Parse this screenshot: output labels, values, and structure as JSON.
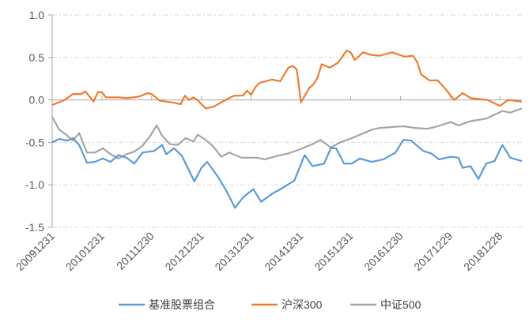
{
  "chart_data": {
    "type": "line",
    "title": "",
    "xlabel": "",
    "ylabel": "",
    "ylim": [
      -1.5,
      1.0
    ],
    "yticks": [
      "1.0",
      "0.5",
      "0.0",
      "-0.5",
      "-1.0",
      "-1.5"
    ],
    "ytick_values": [
      1.0,
      0.5,
      0.0,
      -0.5,
      -1.0,
      -1.5
    ],
    "x_unit": "months since 20091231",
    "xlim": [
      0,
      113.3
    ],
    "xticks": [
      {
        "month": 0,
        "label": "20091231"
      },
      {
        "month": 12,
        "label": "20101231"
      },
      {
        "month": 24,
        "label": "20111230"
      },
      {
        "month": 36,
        "label": "20121231"
      },
      {
        "month": 48,
        "label": "20131231"
      },
      {
        "month": 60,
        "label": "20141231"
      },
      {
        "month": 72,
        "label": "20151231"
      },
      {
        "month": 84,
        "label": "20161230"
      },
      {
        "month": 96,
        "label": "20171229"
      },
      {
        "month": 108,
        "label": "20181228"
      }
    ],
    "grid": "horizontal dashed",
    "legend": "bottom",
    "series": [
      {
        "name": "基准股票组合",
        "color": "#5B9BD5",
        "points": [
          [
            0,
            -0.5
          ],
          [
            1.7,
            -0.46
          ],
          [
            3.6,
            -0.48
          ],
          [
            5,
            -0.45
          ],
          [
            6.5,
            -0.53
          ],
          [
            8.4,
            -0.74
          ],
          [
            10.3,
            -0.73
          ],
          [
            12.2,
            -0.69
          ],
          [
            14.1,
            -0.73
          ],
          [
            16,
            -0.65
          ],
          [
            17.9,
            -0.68
          ],
          [
            19.8,
            -0.75
          ],
          [
            21.8,
            -0.62
          ],
          [
            24.6,
            -0.6
          ],
          [
            26.5,
            -0.53
          ],
          [
            27.5,
            -0.64
          ],
          [
            29.4,
            -0.57
          ],
          [
            31.3,
            -0.66
          ],
          [
            33.2,
            -0.85
          ],
          [
            34.3,
            -0.96
          ],
          [
            36,
            -0.8
          ],
          [
            37.4,
            -0.73
          ],
          [
            39.9,
            -0.9
          ],
          [
            41.8,
            -1.05
          ],
          [
            44.1,
            -1.27
          ],
          [
            46,
            -1.15
          ],
          [
            48.5,
            -1.05
          ],
          [
            50.4,
            -1.2
          ],
          [
            53.2,
            -1.1
          ],
          [
            55.1,
            -1.05
          ],
          [
            58.4,
            -0.95
          ],
          [
            60.9,
            -0.65
          ],
          [
            62.8,
            -0.78
          ],
          [
            65.6,
            -0.75
          ],
          [
            67.2,
            -0.57
          ],
          [
            68.5,
            -0.57
          ],
          [
            70.4,
            -0.75
          ],
          [
            72.3,
            -0.75
          ],
          [
            74.2,
            -0.69
          ],
          [
            77.1,
            -0.73
          ],
          [
            79.9,
            -0.7
          ],
          [
            82.8,
            -0.62
          ],
          [
            84.7,
            -0.47
          ],
          [
            86.6,
            -0.48
          ],
          [
            89.5,
            -0.6
          ],
          [
            91.4,
            -0.63
          ],
          [
            93.3,
            -0.7
          ],
          [
            96.2,
            -0.67
          ],
          [
            98,
            -0.68
          ],
          [
            99,
            -0.8
          ],
          [
            100.9,
            -0.78
          ],
          [
            102.8,
            -0.93
          ],
          [
            104.7,
            -0.75
          ],
          [
            106.7,
            -0.72
          ],
          [
            108.6,
            -0.53
          ],
          [
            110.5,
            -0.68
          ],
          [
            113.3,
            -0.72
          ]
        ]
      },
      {
        "name": "沪深300",
        "color": "#ED7D31",
        "points": [
          [
            0,
            -0.06
          ],
          [
            3,
            0.0
          ],
          [
            5,
            0.07
          ],
          [
            7,
            0.07
          ],
          [
            8,
            0.1
          ],
          [
            10,
            -0.02
          ],
          [
            11,
            0.09
          ],
          [
            12,
            0.09
          ],
          [
            13,
            0.03
          ],
          [
            16,
            0.03
          ],
          [
            18,
            0.02
          ],
          [
            21,
            0.04
          ],
          [
            23,
            0.08
          ],
          [
            24,
            0.07
          ],
          [
            26,
            -0.01
          ],
          [
            29,
            -0.03
          ],
          [
            31,
            -0.05
          ],
          [
            32,
            0.05
          ],
          [
            33,
            0.0
          ],
          [
            34,
            0.03
          ],
          [
            35,
            0.0
          ],
          [
            37,
            -0.1
          ],
          [
            39,
            -0.08
          ],
          [
            40,
            -0.05
          ],
          [
            43,
            0.03
          ],
          [
            44,
            0.05
          ],
          [
            46,
            0.05
          ],
          [
            47,
            0.11
          ],
          [
            48,
            0.06
          ],
          [
            49,
            0.15
          ],
          [
            50,
            0.2
          ],
          [
            53,
            0.24
          ],
          [
            55,
            0.22
          ],
          [
            57,
            0.38
          ],
          [
            58,
            0.4
          ],
          [
            59,
            0.36
          ],
          [
            60,
            -0.03
          ],
          [
            62,
            0.14
          ],
          [
            63,
            0.18
          ],
          [
            64,
            0.26
          ],
          [
            65,
            0.42
          ],
          [
            67,
            0.38
          ],
          [
            69,
            0.44
          ],
          [
            71,
            0.58
          ],
          [
            72,
            0.56
          ],
          [
            73,
            0.47
          ],
          [
            75,
            0.56
          ],
          [
            77,
            0.53
          ],
          [
            79,
            0.52
          ],
          [
            82,
            0.56
          ],
          [
            85,
            0.51
          ],
          [
            87,
            0.52
          ],
          [
            88,
            0.45
          ],
          [
            89,
            0.3
          ],
          [
            91,
            0.23
          ],
          [
            93,
            0.23
          ],
          [
            95,
            0.12
          ],
          [
            97,
            0.0
          ],
          [
            99,
            0.08
          ],
          [
            101,
            0.02
          ],
          [
            105,
            0.0
          ],
          [
            108,
            -0.07
          ],
          [
            110,
            0.0
          ],
          [
            113.3,
            -0.02
          ]
        ]
      },
      {
        "name": "中证500",
        "color": "#A5A5A5",
        "points": [
          [
            0,
            -0.2
          ],
          [
            1.7,
            -0.35
          ],
          [
            3.6,
            -0.42
          ],
          [
            5,
            -0.48
          ],
          [
            6.5,
            -0.39
          ],
          [
            8.4,
            -0.62
          ],
          [
            10.3,
            -0.62
          ],
          [
            12.2,
            -0.57
          ],
          [
            14.1,
            -0.64
          ],
          [
            16,
            -0.69
          ],
          [
            17.9,
            -0.64
          ],
          [
            19.8,
            -0.61
          ],
          [
            21.8,
            -0.54
          ],
          [
            23.7,
            -0.42
          ],
          [
            25.2,
            -0.3
          ],
          [
            26.5,
            -0.42
          ],
          [
            28.4,
            -0.52
          ],
          [
            30.3,
            -0.53
          ],
          [
            32.2,
            -0.45
          ],
          [
            34.1,
            -0.49
          ],
          [
            35.1,
            -0.41
          ],
          [
            37,
            -0.47
          ],
          [
            38.9,
            -0.55
          ],
          [
            40.8,
            -0.67
          ],
          [
            42.7,
            -0.62
          ],
          [
            45.6,
            -0.68
          ],
          [
            49.4,
            -0.68
          ],
          [
            51.3,
            -0.7
          ],
          [
            54.2,
            -0.66
          ],
          [
            57,
            -0.63
          ],
          [
            59.9,
            -0.58
          ],
          [
            62.8,
            -0.52
          ],
          [
            64.7,
            -0.47
          ],
          [
            67.2,
            -0.56
          ],
          [
            69.5,
            -0.5
          ],
          [
            72.3,
            -0.45
          ],
          [
            74.2,
            -0.41
          ],
          [
            77.1,
            -0.35
          ],
          [
            79,
            -0.33
          ],
          [
            81.8,
            -0.32
          ],
          [
            84.7,
            -0.31
          ],
          [
            87.6,
            -0.33
          ],
          [
            90.4,
            -0.34
          ],
          [
            92.3,
            -0.32
          ],
          [
            96.2,
            -0.26
          ],
          [
            98,
            -0.3
          ],
          [
            100.9,
            -0.25
          ],
          [
            104.7,
            -0.22
          ],
          [
            108.6,
            -0.13
          ],
          [
            110.5,
            -0.15
          ],
          [
            113.3,
            -0.1
          ]
        ]
      }
    ]
  }
}
